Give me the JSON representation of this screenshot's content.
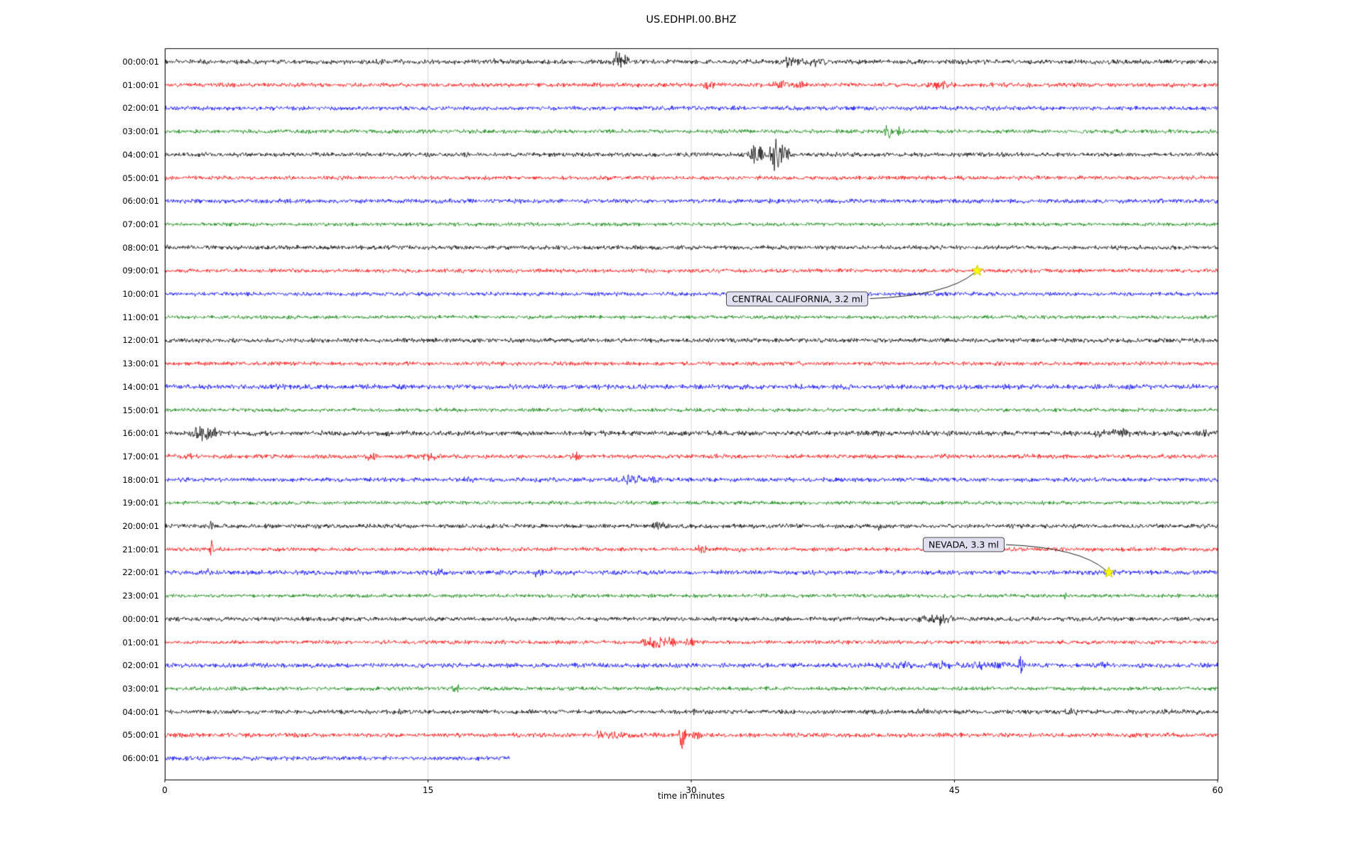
{
  "chart_data": {
    "type": "line",
    "title": "US.EDHPI.00.BHZ",
    "xlabel": "time in minutes",
    "ylabel": "",
    "xlim": [
      0,
      60
    ],
    "xticks": [
      0,
      15,
      30,
      45,
      60
    ],
    "grid": "vertical-gridlines",
    "legend": "none",
    "description": "Helicorder day-plot: one trace per hour, colors cycle black/red/blue/green, amplitudes in pixels",
    "trace_color_cycle": [
      "#000000",
      "#ff0000",
      "#0000ff",
      "#008000"
    ],
    "rows": [
      {
        "label": "00:00:01",
        "color": "#000000",
        "amp": 2.8,
        "bursts": [
          {
            "x": 25.8,
            "amp": 17,
            "w": 0.18
          },
          {
            "x": 26.15,
            "amp": 8,
            "w": 0.25
          },
          {
            "x": 18.7,
            "amp": 3,
            "w": 0.3
          },
          {
            "x": 35.6,
            "amp": 6,
            "w": 0.8
          },
          {
            "x": 36.9,
            "amp": 5,
            "w": 0.35
          },
          {
            "x": 37.6,
            "amp": 4,
            "w": 0.2
          }
        ]
      },
      {
        "label": "01:00:01",
        "color": "#ff0000",
        "amp": 2.6,
        "bursts": [
          {
            "x": 31.0,
            "amp": 5,
            "w": 0.4
          },
          {
            "x": 35.2,
            "amp": 7,
            "w": 0.45
          },
          {
            "x": 36.2,
            "amp": 6,
            "w": 0.3
          },
          {
            "x": 43.9,
            "amp": 5,
            "w": 0.35
          },
          {
            "x": 44.5,
            "amp": 4,
            "w": 0.25
          }
        ]
      },
      {
        "label": "02:00:01",
        "color": "#0000ff",
        "amp": 2.6,
        "bursts": []
      },
      {
        "label": "03:00:01",
        "color": "#008000",
        "amp": 2.4,
        "bursts": [
          {
            "x": 41.2,
            "amp": 10,
            "w": 0.25
          },
          {
            "x": 41.8,
            "amp": 5,
            "w": 0.3
          }
        ]
      },
      {
        "label": "04:00:01",
        "color": "#000000",
        "amp": 2.6,
        "bursts": [
          {
            "x": 33.7,
            "amp": 14,
            "w": 0.45
          },
          {
            "x": 34.8,
            "amp": 24,
            "w": 0.3
          },
          {
            "x": 35.3,
            "amp": 10,
            "w": 0.4
          }
        ]
      },
      {
        "label": "05:00:01",
        "color": "#ff0000",
        "amp": 2.4,
        "bursts": []
      },
      {
        "label": "06:00:01",
        "color": "#0000ff",
        "amp": 2.6,
        "bursts": []
      },
      {
        "label": "07:00:01",
        "color": "#008000",
        "amp": 2.2,
        "bursts": []
      },
      {
        "label": "08:00:01",
        "color": "#000000",
        "amp": 2.6,
        "bursts": []
      },
      {
        "label": "09:00:01",
        "color": "#ff0000",
        "amp": 2.4,
        "bursts": []
      },
      {
        "label": "10:00:01",
        "color": "#0000ff",
        "amp": 2.4,
        "bursts": []
      },
      {
        "label": "11:00:01",
        "color": "#008000",
        "amp": 2.2,
        "bursts": []
      },
      {
        "label": "12:00:01",
        "color": "#000000",
        "amp": 2.6,
        "bursts": []
      },
      {
        "label": "13:00:01",
        "color": "#ff0000",
        "amp": 2.4,
        "bursts": []
      },
      {
        "label": "14:00:01",
        "color": "#0000ff",
        "amp": 3.0,
        "bursts": []
      },
      {
        "label": "15:00:01",
        "color": "#008000",
        "amp": 2.3,
        "bursts": []
      },
      {
        "label": "16:00:01",
        "color": "#000000",
        "amp": 3.0,
        "bursts": [
          {
            "x": 2.0,
            "amp": 11,
            "w": 0.5
          },
          {
            "x": 2.7,
            "amp": 9,
            "w": 0.4
          },
          {
            "x": 12.7,
            "amp": 4,
            "w": 0.15
          },
          {
            "x": 53.4,
            "amp": 4,
            "w": 0.8
          },
          {
            "x": 54.6,
            "amp": 5,
            "w": 0.5
          },
          {
            "x": 57.6,
            "amp": 4,
            "w": 0.4
          },
          {
            "x": 59.3,
            "amp": 4,
            "w": 0.3
          }
        ]
      },
      {
        "label": "17:00:01",
        "color": "#ff0000",
        "amp": 2.6,
        "bursts": [
          {
            "x": 1.4,
            "amp": 4,
            "w": 0.3
          },
          {
            "x": 3.6,
            "amp": 6,
            "w": 0.3
          },
          {
            "x": 11.8,
            "amp": 5,
            "w": 0.35
          },
          {
            "x": 15.1,
            "amp": 6,
            "w": 0.4
          },
          {
            "x": 23.4,
            "amp": 5,
            "w": 0.3
          }
        ]
      },
      {
        "label": "18:00:01",
        "color": "#0000ff",
        "amp": 2.6,
        "bursts": [
          {
            "x": 17.3,
            "amp": 4,
            "w": 0.3
          },
          {
            "x": 21.2,
            "amp": 3,
            "w": 0.3
          },
          {
            "x": 26.6,
            "amp": 7,
            "w": 0.7
          },
          {
            "x": 27.9,
            "amp": 6,
            "w": 0.5
          }
        ]
      },
      {
        "label": "19:00:01",
        "color": "#008000",
        "amp": 2.2,
        "bursts": []
      },
      {
        "label": "20:00:01",
        "color": "#000000",
        "amp": 2.6,
        "bursts": [
          {
            "x": 2.7,
            "amp": 17,
            "w": 0.15
          },
          {
            "x": 28.2,
            "amp": 5,
            "w": 0.5
          },
          {
            "x": 40.6,
            "amp": 4,
            "w": 0.3
          }
        ]
      },
      {
        "label": "21:00:01",
        "color": "#ff0000",
        "amp": 2.4,
        "bursts": [
          {
            "x": 2.7,
            "amp": 14,
            "w": 0.15
          },
          {
            "x": 30.6,
            "amp": 5,
            "w": 0.4
          },
          {
            "x": 32.8,
            "amp": 4,
            "w": 0.3
          }
        ]
      },
      {
        "label": "22:00:01",
        "color": "#0000ff",
        "amp": 2.8,
        "bursts": [
          {
            "x": 2.5,
            "amp": 3,
            "w": 0.3
          },
          {
            "x": 15.6,
            "amp": 5,
            "w": 0.3
          },
          {
            "x": 16.9,
            "amp": 4,
            "w": 0.25
          },
          {
            "x": 21.1,
            "amp": 4,
            "w": 0.3
          }
        ]
      },
      {
        "label": "23:00:01",
        "color": "#008000",
        "amp": 2.2,
        "bursts": [
          {
            "x": 51.3,
            "amp": 9,
            "w": 0.12
          }
        ]
      },
      {
        "label": "00:00:01",
        "color": "#000000",
        "amp": 2.6,
        "bursts": [
          {
            "x": 43.4,
            "amp": 6,
            "w": 0.6
          },
          {
            "x": 44.2,
            "amp": 7,
            "w": 0.35
          },
          {
            "x": 44.8,
            "amp": 4,
            "w": 0.3
          }
        ]
      },
      {
        "label": "01:00:01",
        "color": "#ff0000",
        "amp": 2.4,
        "bursts": [
          {
            "x": 27.4,
            "amp": 5,
            "w": 0.3
          },
          {
            "x": 28.1,
            "amp": 8,
            "w": 0.5
          },
          {
            "x": 28.9,
            "amp": 6,
            "w": 0.3
          },
          {
            "x": 29.9,
            "amp": 6,
            "w": 0.25
          }
        ]
      },
      {
        "label": "02:00:01",
        "color": "#0000ff",
        "amp": 2.8,
        "bursts": [
          {
            "x": 41.6,
            "amp": 4,
            "w": 1.2
          },
          {
            "x": 44.0,
            "amp": 4,
            "w": 0.8
          },
          {
            "x": 46.2,
            "amp": 5,
            "w": 1.0
          },
          {
            "x": 47.6,
            "amp": 4,
            "w": 0.6
          },
          {
            "x": 48.8,
            "amp": 13,
            "w": 0.2
          },
          {
            "x": 53.3,
            "amp": 4,
            "w": 0.4
          }
        ]
      },
      {
        "label": "03:00:01",
        "color": "#008000",
        "amp": 2.3,
        "bursts": [
          {
            "x": 16.6,
            "amp": 8,
            "w": 0.2
          }
        ]
      },
      {
        "label": "04:00:01",
        "color": "#000000",
        "amp": 2.6,
        "bursts": [
          {
            "x": 13.4,
            "amp": 5,
            "w": 0.12
          },
          {
            "x": 30.2,
            "amp": 4,
            "w": 0.15
          },
          {
            "x": 43.1,
            "amp": 3,
            "w": 0.3
          },
          {
            "x": 51.6,
            "amp": 4,
            "w": 0.4
          },
          {
            "x": 56.9,
            "amp": 4,
            "w": 0.3
          },
          {
            "x": 58.8,
            "amp": 3,
            "w": 0.3
          }
        ]
      },
      {
        "label": "05:00:01",
        "color": "#ff0000",
        "amp": 2.6,
        "bursts": [
          {
            "x": 24.8,
            "amp": 4,
            "w": 0.3
          },
          {
            "x": 25.6,
            "amp": 5,
            "w": 0.4
          },
          {
            "x": 26.3,
            "amp": 4,
            "w": 0.3
          },
          {
            "x": 29.5,
            "amp": 20,
            "w": 0.18
          },
          {
            "x": 30.3,
            "amp": 7,
            "w": 0.3
          }
        ]
      },
      {
        "label": "06:00:01",
        "color": "#0000ff",
        "amp": 2.6,
        "bursts": [],
        "end_minutes": 19.7
      }
    ],
    "annotations": [
      {
        "text": "CENTRAL CALIFORNIA, 3.2 ml",
        "row_index": 9,
        "x_minutes": 46.3,
        "label_x_minutes": 32.0,
        "label_row": 10.2,
        "marker": "yellow-star",
        "marker_color": "#ffff00"
      },
      {
        "text": "NEVADA, 3.3 ml",
        "row_index": 22,
        "x_minutes": 53.8,
        "label_x_minutes": 43.2,
        "label_row": 20.8,
        "marker": "yellow-star",
        "marker_color": "#ffff00"
      }
    ]
  }
}
